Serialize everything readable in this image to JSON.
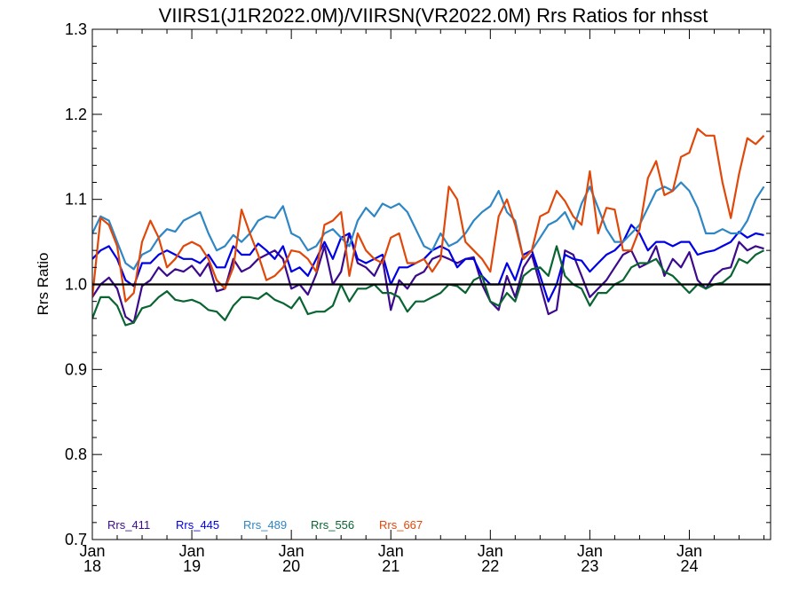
{
  "chart_data": {
    "type": "line",
    "title": "VIIRS1(J1R2022.0M)/VIIRSN(VR2022.0M)  Rrs Ratios for nhsst",
    "ylabel": "Rrs Ratio",
    "ylim": [
      0.7,
      1.3
    ],
    "yticks": [
      "0.7",
      "0.8",
      "0.9",
      "1.0",
      "1.1",
      "1.2",
      "1.3"
    ],
    "xlim": [
      "2018-01",
      "2024-10"
    ],
    "xticks": [
      {
        "month": "Jan",
        "year": "18"
      },
      {
        "month": "Jan",
        "year": "19"
      },
      {
        "month": "Jan",
        "year": "20"
      },
      {
        "month": "Jan",
        "year": "21"
      },
      {
        "month": "Jan",
        "year": "22"
      },
      {
        "month": "Jan",
        "year": "23"
      },
      {
        "month": "Jan",
        "year": "24"
      }
    ],
    "reference_line": 1.0,
    "grid": false,
    "legend_placement": "bottom-left",
    "x": [
      "2018-01",
      "2018-02",
      "2018-03",
      "2018-04",
      "2018-05",
      "2018-06",
      "2018-07",
      "2018-08",
      "2018-09",
      "2018-10",
      "2018-11",
      "2018-12",
      "2019-01",
      "2019-02",
      "2019-03",
      "2019-04",
      "2019-05",
      "2019-06",
      "2019-07",
      "2019-08",
      "2019-09",
      "2019-10",
      "2019-11",
      "2019-12",
      "2020-01",
      "2020-02",
      "2020-03",
      "2020-04",
      "2020-05",
      "2020-06",
      "2020-07",
      "2020-08",
      "2020-09",
      "2020-10",
      "2020-11",
      "2020-12",
      "2021-01",
      "2021-02",
      "2021-03",
      "2021-04",
      "2021-05",
      "2021-06",
      "2021-07",
      "2021-08",
      "2021-09",
      "2021-10",
      "2021-11",
      "2021-12",
      "2022-01",
      "2022-02",
      "2022-03",
      "2022-04",
      "2022-05",
      "2022-06",
      "2022-07",
      "2022-08",
      "2022-09",
      "2022-10",
      "2022-11",
      "2022-12",
      "2023-01",
      "2023-02",
      "2023-03",
      "2023-04",
      "2023-05",
      "2023-06",
      "2023-07",
      "2023-08",
      "2023-09",
      "2023-10",
      "2023-11",
      "2023-12",
      "2024-01",
      "2024-02",
      "2024-03",
      "2024-04",
      "2024-05",
      "2024-06",
      "2024-07",
      "2024-08",
      "2024-09",
      "2024-10"
    ],
    "series": [
      {
        "name": "Rrs_411",
        "color": "#3c0a8c",
        "values": [
          0.985,
          1.0,
          1.008,
          0.995,
          0.962,
          0.955,
          0.998,
          1.005,
          1.02,
          1.01,
          1.018,
          1.015,
          1.022,
          1.01,
          1.025,
          0.992,
          0.995,
          1.03,
          1.015,
          1.02,
          1.03,
          1.035,
          1.04,
          1.03,
          0.995,
          1.0,
          0.988,
          1.012,
          1.045,
          1.0,
          1.015,
          1.06,
          1.025,
          1.02,
          1.01,
          1.03,
          0.97,
          1.005,
          0.995,
          1.01,
          1.015,
          1.03,
          1.034,
          1.03,
          1.025,
          1.03,
          1.032,
          1.0,
          0.98,
          0.97,
          1.01,
          0.985,
          1.02,
          1.035,
          1.0,
          0.965,
          0.97,
          1.04,
          1.035,
          1.01,
          0.985,
          0.995,
          1.005,
          1.02,
          1.035,
          1.04,
          1.02,
          1.025,
          1.045,
          1.01,
          1.03,
          1.02,
          1.038,
          1.005,
          0.995,
          1.01,
          1.018,
          1.02,
          1.05,
          1.04,
          1.045,
          1.042
        ]
      },
      {
        "name": "Rrs_445",
        "color": "#0000e6",
        "values": [
          1.03,
          1.04,
          1.045,
          1.03,
          1.005,
          0.998,
          1.025,
          1.025,
          1.035,
          1.04,
          1.035,
          1.03,
          1.03,
          1.025,
          1.035,
          1.02,
          1.02,
          1.045,
          1.035,
          1.035,
          1.048,
          1.04,
          1.03,
          1.045,
          1.015,
          1.02,
          1.01,
          1.03,
          1.05,
          1.03,
          1.055,
          1.06,
          1.03,
          1.025,
          1.03,
          1.035,
          1.0,
          1.02,
          1.02,
          1.025,
          1.03,
          1.04,
          1.045,
          1.04,
          1.02,
          1.03,
          1.03,
          1.01,
          1.0,
          1.0,
          1.025,
          1.005,
          1.035,
          1.04,
          1.01,
          0.98,
          1.0,
          1.035,
          1.03,
          1.028,
          1.015,
          1.025,
          1.035,
          1.04,
          1.05,
          1.07,
          1.06,
          1.04,
          1.05,
          1.05,
          1.045,
          1.05,
          1.05,
          1.035,
          1.038,
          1.04,
          1.045,
          1.05,
          1.062,
          1.055,
          1.06,
          1.058
        ]
      },
      {
        "name": "Rrs_489",
        "color": "#2f86c4",
        "values": [
          1.06,
          1.08,
          1.075,
          1.05,
          1.025,
          1.018,
          1.035,
          1.04,
          1.055,
          1.065,
          1.062,
          1.075,
          1.08,
          1.085,
          1.06,
          1.04,
          1.045,
          1.058,
          1.05,
          1.06,
          1.075,
          1.08,
          1.078,
          1.092,
          1.06,
          1.055,
          1.04,
          1.045,
          1.06,
          1.065,
          1.055,
          1.045,
          1.075,
          1.09,
          1.08,
          1.095,
          1.09,
          1.095,
          1.085,
          1.065,
          1.045,
          1.04,
          1.06,
          1.045,
          1.05,
          1.06,
          1.075,
          1.085,
          1.092,
          1.11,
          1.085,
          1.075,
          1.03,
          1.04,
          1.055,
          1.07,
          1.075,
          1.085,
          1.065,
          1.095,
          1.115,
          1.09,
          1.065,
          1.05,
          1.05,
          1.06,
          1.07,
          1.09,
          1.11,
          1.115,
          1.11,
          1.12,
          1.11,
          1.09,
          1.06,
          1.06,
          1.065,
          1.06,
          1.06,
          1.075,
          1.1,
          1.115
        ]
      },
      {
        "name": "Rrs_556",
        "color": "#0a6432",
        "values": [
          0.96,
          0.985,
          0.985,
          0.975,
          0.952,
          0.955,
          0.972,
          0.975,
          0.985,
          0.992,
          0.982,
          0.98,
          0.982,
          0.978,
          0.97,
          0.968,
          0.958,
          0.975,
          0.985,
          0.985,
          0.983,
          0.99,
          0.982,
          0.978,
          0.972,
          0.985,
          0.965,
          0.968,
          0.968,
          0.975,
          1.0,
          0.98,
          0.995,
          0.995,
          1.0,
          0.99,
          0.99,
          0.985,
          0.968,
          0.98,
          0.98,
          0.985,
          0.99,
          1.0,
          0.998,
          0.99,
          1.005,
          1.01,
          0.98,
          0.975,
          0.99,
          0.98,
          1.01,
          1.018,
          1.02,
          1.01,
          1.045,
          1.01,
          1.0,
          0.995,
          0.975,
          0.99,
          0.99,
          1.0,
          1.005,
          1.02,
          1.025,
          1.025,
          1.03,
          1.015,
          1.01,
          1.0,
          0.99,
          1.0,
          0.995,
          1.0,
          1.002,
          1.01,
          1.03,
          1.025,
          1.035,
          1.04
        ]
      },
      {
        "name": "Rrs_667",
        "color": "#e0480a",
        "values": [
          0.985,
          1.078,
          1.07,
          1.045,
          0.98,
          0.99,
          1.05,
          1.075,
          1.055,
          1.02,
          1.03,
          1.045,
          1.05,
          1.045,
          1.03,
          1.005,
          0.995,
          1.02,
          1.088,
          1.06,
          1.035,
          1.005,
          1.01,
          1.02,
          1.04,
          1.038,
          1.03,
          1.015,
          1.07,
          1.075,
          1.085,
          1.01,
          1.06,
          1.04,
          1.03,
          1.025,
          1.055,
          1.06,
          1.025,
          1.025,
          1.03,
          1.015,
          1.03,
          1.115,
          1.1,
          1.05,
          1.04,
          1.03,
          1.015,
          1.08,
          1.1,
          1.07,
          1.03,
          1.04,
          1.08,
          1.085,
          1.11,
          1.098,
          1.08,
          1.07,
          1.133,
          1.06,
          1.09,
          1.088,
          1.04,
          1.04,
          1.065,
          1.125,
          1.145,
          1.105,
          1.11,
          1.15,
          1.155,
          1.183,
          1.175,
          1.175,
          1.12,
          1.078,
          1.13,
          1.172,
          1.165,
          1.175
        ]
      }
    ]
  }
}
